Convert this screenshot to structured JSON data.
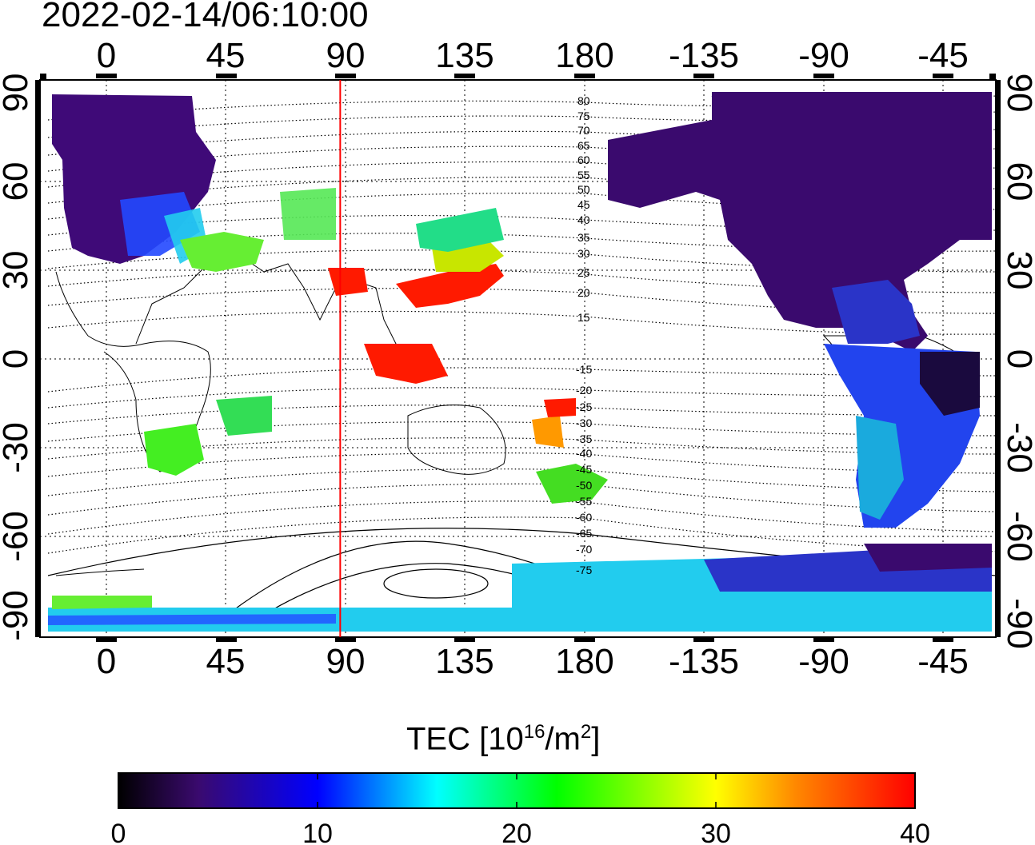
{
  "title": "2022-02-14/06:10:00",
  "colorbar": {
    "label_main": "TEC  [10",
    "label_exp": "16",
    "label_mid": "/m",
    "label_exp2": "2",
    "label_end": "]",
    "ticks": [
      "0",
      "10",
      "20",
      "30",
      "40"
    ],
    "range": [
      0,
      40
    ],
    "colors": [
      "#000000",
      "#3a0a6e",
      "#0000ff",
      "#00ffff",
      "#00ff00",
      "#ffff00",
      "#ff0000"
    ]
  },
  "map": {
    "lon_ticks": [
      "0",
      "45",
      "90",
      "135",
      "180",
      "-135",
      "-90",
      "-45"
    ],
    "lat_ticks_left": [
      "90",
      "60",
      "30",
      "0",
      "-30",
      "-60",
      "-90"
    ],
    "lat_ticks_right": [
      "90",
      "60",
      "30",
      "0",
      "-30",
      "-60",
      "-90"
    ],
    "marker_longitude": 88,
    "marker_color": "#ff0000",
    "contour_labels": [
      "80",
      "75",
      "70",
      "65",
      "60",
      "55",
      "50",
      "45",
      "40",
      "35",
      "30",
      "25",
      "20",
      "15",
      "-15",
      "-20",
      "-25",
      "-30",
      "-35",
      "-40",
      "-45",
      "-50",
      "-55",
      "-60",
      "-65",
      "-70",
      "-75"
    ]
  }
}
